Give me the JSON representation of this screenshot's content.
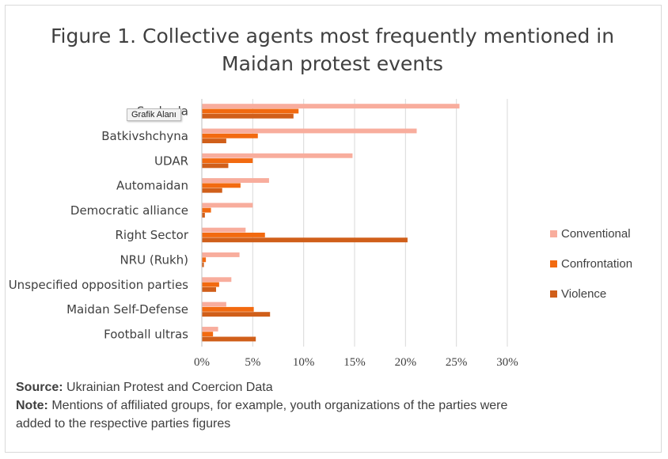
{
  "chart_data": {
    "type": "bar",
    "orientation": "horizontal",
    "title": "Figure 1. Collective agents most frequently mentioned in Maidan protest events",
    "title_lines": [
      "Figure 1. Collective agents most frequently mentioned in",
      "Maidan protest events"
    ],
    "categories": [
      "Svoboda",
      "Batkivshchyna",
      "UDAR",
      "Automaidan",
      "Democratic alliance",
      "Right Sector",
      "NRU (Rukh)",
      "Unspecified opposition  parties",
      "Maidan Self-Defense",
      "Football ultras"
    ],
    "series": [
      {
        "name": "Conventional",
        "color": "#f8ad9d",
        "values": [
          25.3,
          21.1,
          14.8,
          6.6,
          5.0,
          4.3,
          3.7,
          2.9,
          2.4,
          1.6
        ]
      },
      {
        "name": "Confrontation",
        "color": "#f26a10",
        "values": [
          9.5,
          5.5,
          5.0,
          3.8,
          0.9,
          6.2,
          0.4,
          1.7,
          5.1,
          1.1
        ]
      },
      {
        "name": "Violence",
        "color": "#d05f1a",
        "values": [
          9.0,
          2.4,
          2.6,
          2.0,
          0.3,
          20.2,
          0.2,
          1.4,
          6.7,
          5.3
        ]
      }
    ],
    "xlim": [
      0,
      30
    ],
    "xticks": [
      "0%",
      "5%",
      "10%",
      "15%",
      "20%",
      "25%",
      "30%"
    ],
    "grid": true,
    "legend_position": "right",
    "xlabel": "",
    "ylabel": ""
  },
  "tooltip": "Grafik Alanı",
  "footer": {
    "source_label": "Source:",
    "source_text": " Ukrainian Protest and Coercion Data",
    "note_label": "Note:",
    "note_text": " Mentions of affiliated groups, for example, youth organizations of the parties were added to the respective parties figures"
  }
}
